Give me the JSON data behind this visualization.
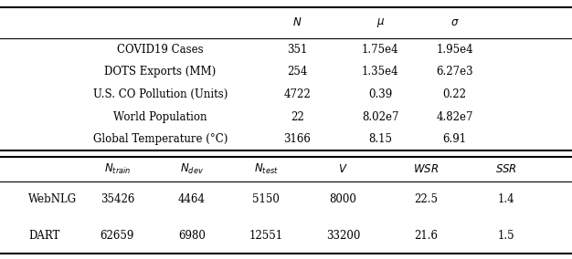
{
  "top_rows": [
    [
      "COVID19 Cases",
      "351",
      "1.75e4",
      "1.95e4"
    ],
    [
      "DOTS Exports (MM)",
      "254",
      "1.35e4",
      "6.27e3"
    ],
    [
      "U.S. CO Pollution (Units)",
      "4722",
      "0.39",
      "0.22"
    ],
    [
      "World Population",
      "22",
      "8.02e7",
      "4.82e7"
    ],
    [
      "Global Temperature (°C)",
      "3166",
      "8.15",
      "6.91"
    ]
  ],
  "bottom_rows": [
    [
      "WebNLG",
      "35426",
      "4464",
      "5150",
      "8000",
      "22.5",
      "1.4"
    ],
    [
      "DART",
      "62659",
      "6980",
      "12551",
      "33200",
      "21.6",
      "1.5"
    ]
  ],
  "font_size": 8.5,
  "bg_color": "#ffffff"
}
